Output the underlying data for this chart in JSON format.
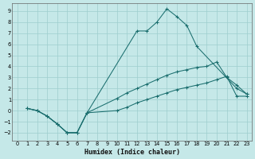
{
  "xlabel": "Humidex (Indice chaleur)",
  "bg_color": "#c5e8e8",
  "grid_color": "#9ecece",
  "line_color": "#1a6e6e",
  "xlim": [
    -0.5,
    23.5
  ],
  "ylim": [
    -2.7,
    9.7
  ],
  "xticks": [
    0,
    1,
    2,
    3,
    4,
    5,
    6,
    7,
    8,
    9,
    10,
    11,
    12,
    13,
    14,
    15,
    16,
    17,
    18,
    19,
    20,
    21,
    22,
    23
  ],
  "yticks": [
    -2,
    -1,
    0,
    1,
    2,
    3,
    4,
    5,
    6,
    7,
    8,
    9
  ],
  "line1_x": [
    1,
    2,
    3,
    4,
    5,
    6,
    7,
    12,
    13,
    14,
    15,
    16,
    17,
    18,
    22,
    23
  ],
  "line1_y": [
    0.2,
    0.0,
    -0.5,
    -1.2,
    -2.0,
    -2.0,
    -0.2,
    7.2,
    7.2,
    8.0,
    9.2,
    8.5,
    7.7,
    5.8,
    2.0,
    1.5
  ],
  "line2_x": [
    1,
    2,
    3,
    4,
    5,
    6,
    7,
    10,
    11,
    12,
    13,
    14,
    15,
    16,
    17,
    18,
    19,
    20,
    21,
    22,
    23
  ],
  "line2_y": [
    0.2,
    0.0,
    -0.5,
    -1.2,
    -2.0,
    -2.0,
    -0.2,
    1.1,
    1.6,
    2.0,
    2.4,
    2.8,
    3.2,
    3.5,
    3.7,
    3.9,
    4.0,
    4.4,
    3.0,
    2.3,
    1.5
  ],
  "line3_x": [
    1,
    2,
    3,
    4,
    5,
    6,
    7,
    10,
    11,
    12,
    13,
    14,
    15,
    16,
    17,
    18,
    19,
    20,
    21,
    22,
    23
  ],
  "line3_y": [
    0.2,
    0.0,
    -0.5,
    -1.2,
    -2.0,
    -2.0,
    -0.2,
    0.0,
    0.3,
    0.7,
    1.0,
    1.3,
    1.6,
    1.9,
    2.1,
    2.3,
    2.5,
    2.8,
    3.1,
    1.3,
    1.3
  ]
}
